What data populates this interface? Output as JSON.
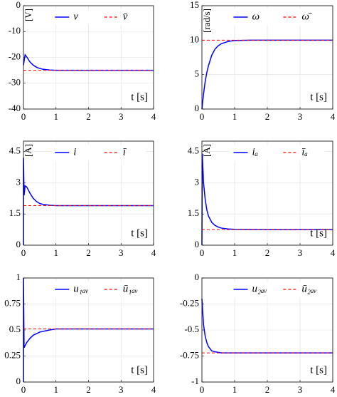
{
  "chart_data": [
    {
      "type": "line",
      "y_unit_label": "[V]",
      "x_label": "t [s]",
      "xlim": [
        0,
        4
      ],
      "xticks": [
        0,
        1,
        2,
        3,
        4
      ],
      "ylim": [
        -40,
        0
      ],
      "yticks": [
        -40,
        -30,
        -20,
        -10,
        0
      ],
      "grid": true,
      "legend": "top",
      "series": [
        {
          "name": "v",
          "color": "#0000ff",
          "linestyle": "solid",
          "x": [
            0,
            0.05,
            0.1,
            0.2,
            0.3,
            0.4,
            0.5,
            0.6,
            0.8,
            1,
            1.5,
            2,
            3,
            4
          ],
          "values": [
            -23,
            -19,
            -19.8,
            -21.8,
            -23,
            -23.8,
            -24.3,
            -24.6,
            -24.9,
            -25,
            -25,
            -25,
            -25,
            -25
          ]
        },
        {
          "name": "v̄",
          "color": "#ff0000",
          "linestyle": "dashed",
          "x": [
            0,
            4
          ],
          "values": [
            -25,
            -25
          ]
        }
      ]
    },
    {
      "type": "line",
      "y_unit_label": "[rad/s]",
      "x_label": "t [s]",
      "xlim": [
        0,
        4
      ],
      "xticks": [
        0,
        1,
        2,
        3,
        4
      ],
      "ylim": [
        0,
        15
      ],
      "yticks": [
        0,
        5,
        10,
        15
      ],
      "grid": true,
      "legend": "top",
      "series": [
        {
          "name": "ω",
          "color": "#0000ff",
          "linestyle": "solid",
          "x": [
            0,
            0.05,
            0.1,
            0.15,
            0.2,
            0.3,
            0.4,
            0.5,
            0.6,
            0.8,
            1,
            1.5,
            2,
            3,
            4
          ],
          "values": [
            0,
            2.2,
            4,
            5.3,
            6.3,
            7.8,
            8.7,
            9.2,
            9.5,
            9.8,
            9.95,
            10,
            10,
            10,
            10
          ]
        },
        {
          "name": "ω̄",
          "color": "#ff0000",
          "linestyle": "dashed",
          "x": [
            0,
            4
          ],
          "values": [
            10,
            10
          ]
        }
      ]
    },
    {
      "type": "line",
      "y_unit_label": "[A]",
      "x_label": "t [s]",
      "xlim": [
        0,
        4
      ],
      "xticks": [
        0,
        1,
        2,
        3,
        4
      ],
      "ylim": [
        0,
        5
      ],
      "yticks": [
        0,
        1.5,
        3,
        4.5
      ],
      "grid": true,
      "legend": "top",
      "series": [
        {
          "name": "i",
          "color": "#0000ff",
          "linestyle": "solid",
          "x": [
            0,
            0,
            0.02,
            0.05,
            0.1,
            0.2,
            0.3,
            0.4,
            0.5,
            0.6,
            0.8,
            1,
            2,
            4
          ],
          "values": [
            0,
            4.2,
            2.4,
            2.85,
            2.8,
            2.5,
            2.25,
            2.1,
            2.0,
            1.96,
            1.92,
            1.9,
            1.9,
            1.9
          ]
        },
        {
          "name": "ī",
          "color": "#ff0000",
          "linestyle": "dashed",
          "x": [
            0,
            4
          ],
          "values": [
            1.9,
            1.9
          ]
        }
      ]
    },
    {
      "type": "line",
      "y_unit_label": "[A]",
      "x_label": "t [s]",
      "xlim": [
        0,
        4
      ],
      "xticks": [
        0,
        1,
        2,
        3,
        4
      ],
      "ylim": [
        0,
        5
      ],
      "yticks": [
        0,
        1.5,
        3,
        4.5
      ],
      "grid": true,
      "legend": "top",
      "series": [
        {
          "name": "iₐ",
          "color": "#0000ff",
          "linestyle": "solid",
          "x": [
            0,
            0.01,
            0.05,
            0.1,
            0.15,
            0.2,
            0.3,
            0.4,
            0.5,
            0.6,
            0.8,
            1,
            2,
            4
          ],
          "values": [
            0,
            4.4,
            3,
            2.2,
            1.7,
            1.4,
            1.1,
            0.95,
            0.87,
            0.82,
            0.78,
            0.76,
            0.75,
            0.75
          ]
        },
        {
          "name": "īₐ",
          "color": "#ff0000",
          "linestyle": "dashed",
          "x": [
            0,
            4
          ],
          "values": [
            0.75,
            0.75
          ]
        }
      ]
    },
    {
      "type": "line",
      "x_label": "t [s]",
      "xlim": [
        0,
        4
      ],
      "xticks": [
        0,
        1,
        2,
        3,
        4
      ],
      "ylim": [
        0,
        1
      ],
      "yticks": [
        0,
        0.25,
        0.5,
        0.75,
        1
      ],
      "grid": true,
      "legend": "top",
      "series": [
        {
          "name": "u₁ₐᵥ",
          "color": "#0000ff",
          "linestyle": "solid",
          "x": [
            0,
            0,
            0.02,
            0.05,
            0.1,
            0.2,
            0.3,
            0.5,
            0.8,
            1,
            2,
            4
          ],
          "values": [
            0,
            1,
            0.33,
            0.35,
            0.38,
            0.42,
            0.45,
            0.48,
            0.5,
            0.51,
            0.51,
            0.51
          ]
        },
        {
          "name": "ū₁ₐᵥ",
          "color": "#ff0000",
          "linestyle": "dashed",
          "x": [
            0,
            4
          ],
          "values": [
            0.51,
            0.51
          ]
        }
      ]
    },
    {
      "type": "line",
      "x_label": "t [s]",
      "xlim": [
        0,
        4
      ],
      "xticks": [
        0,
        1,
        2,
        3,
        4
      ],
      "ylim": [
        -1,
        0
      ],
      "yticks": [
        -1,
        -0.75,
        -0.5,
        -0.25,
        0
      ],
      "grid": true,
      "legend": "top",
      "series": [
        {
          "name": "u₂ₐᵥ",
          "color": "#0000ff",
          "linestyle": "solid",
          "x": [
            0,
            0.05,
            0.1,
            0.15,
            0.2,
            0.3,
            0.4,
            0.5,
            0.6,
            0.8,
            1,
            2,
            4
          ],
          "values": [
            -0.2,
            -0.45,
            -0.56,
            -0.62,
            -0.66,
            -0.7,
            -0.71,
            -0.715,
            -0.72,
            -0.72,
            -0.72,
            -0.72,
            -0.72
          ]
        },
        {
          "name": "ū₂ₐᵥ",
          "color": "#ff0000",
          "linestyle": "dashed",
          "x": [
            0,
            4
          ],
          "values": [
            -0.72,
            -0.72
          ]
        }
      ]
    }
  ]
}
